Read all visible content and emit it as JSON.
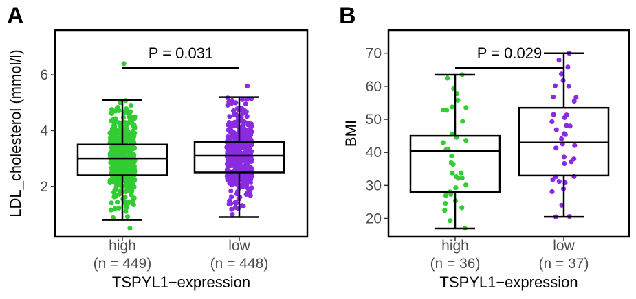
{
  "chart_data": [
    {
      "panel": "A",
      "type": "box",
      "xlabel": "TSPYL1−expression",
      "ylabel": "LDL_cholesterol (mmol/l)",
      "yticks": [
        "2",
        "4",
        "6"
      ],
      "ytick_values": [
        2,
        4,
        6
      ],
      "ylim": [
        0.2,
        7.6
      ],
      "pvalue": "P = 0.031",
      "groups": [
        {
          "category": "high",
          "n_label": "(n = 449)",
          "n": 449,
          "color": "#33cc33",
          "min": 0.8,
          "q1": 2.4,
          "median": 3.0,
          "q3": 3.5,
          "max": 5.1,
          "extremes": [
            0.5,
            6.4
          ]
        },
        {
          "category": "low",
          "n_label": "(n = 448)",
          "n": 448,
          "color": "#8a2be2",
          "min": 0.9,
          "q1": 2.5,
          "median": 3.1,
          "q3": 3.6,
          "max": 5.2,
          "extremes": [
            1.0,
            5.6
          ]
        }
      ]
    },
    {
      "panel": "B",
      "type": "box",
      "xlabel": "TSPYL1−expression",
      "ylabel": "BMI",
      "yticks": [
        "20",
        "30",
        "40",
        "50",
        "60",
        "70"
      ],
      "ytick_values": [
        20,
        30,
        40,
        50,
        60,
        70
      ],
      "ylim": [
        14.5,
        77
      ],
      "pvalue": "P = 0.029",
      "groups": [
        {
          "category": "high",
          "n_label": "(n = 36)",
          "n": 36,
          "color": "#33cc33",
          "min": 17,
          "q1": 28,
          "median": 40.5,
          "q3": 45,
          "max": 63.5,
          "extremes": [
            17,
            63.5
          ]
        },
        {
          "category": "low",
          "n_label": "(n = 37)",
          "n": 37,
          "color": "#8a2be2",
          "min": 20.5,
          "q1": 33,
          "median": 43,
          "q3": 53.5,
          "max": 70,
          "extremes": [
            20.5,
            70
          ]
        }
      ]
    }
  ]
}
